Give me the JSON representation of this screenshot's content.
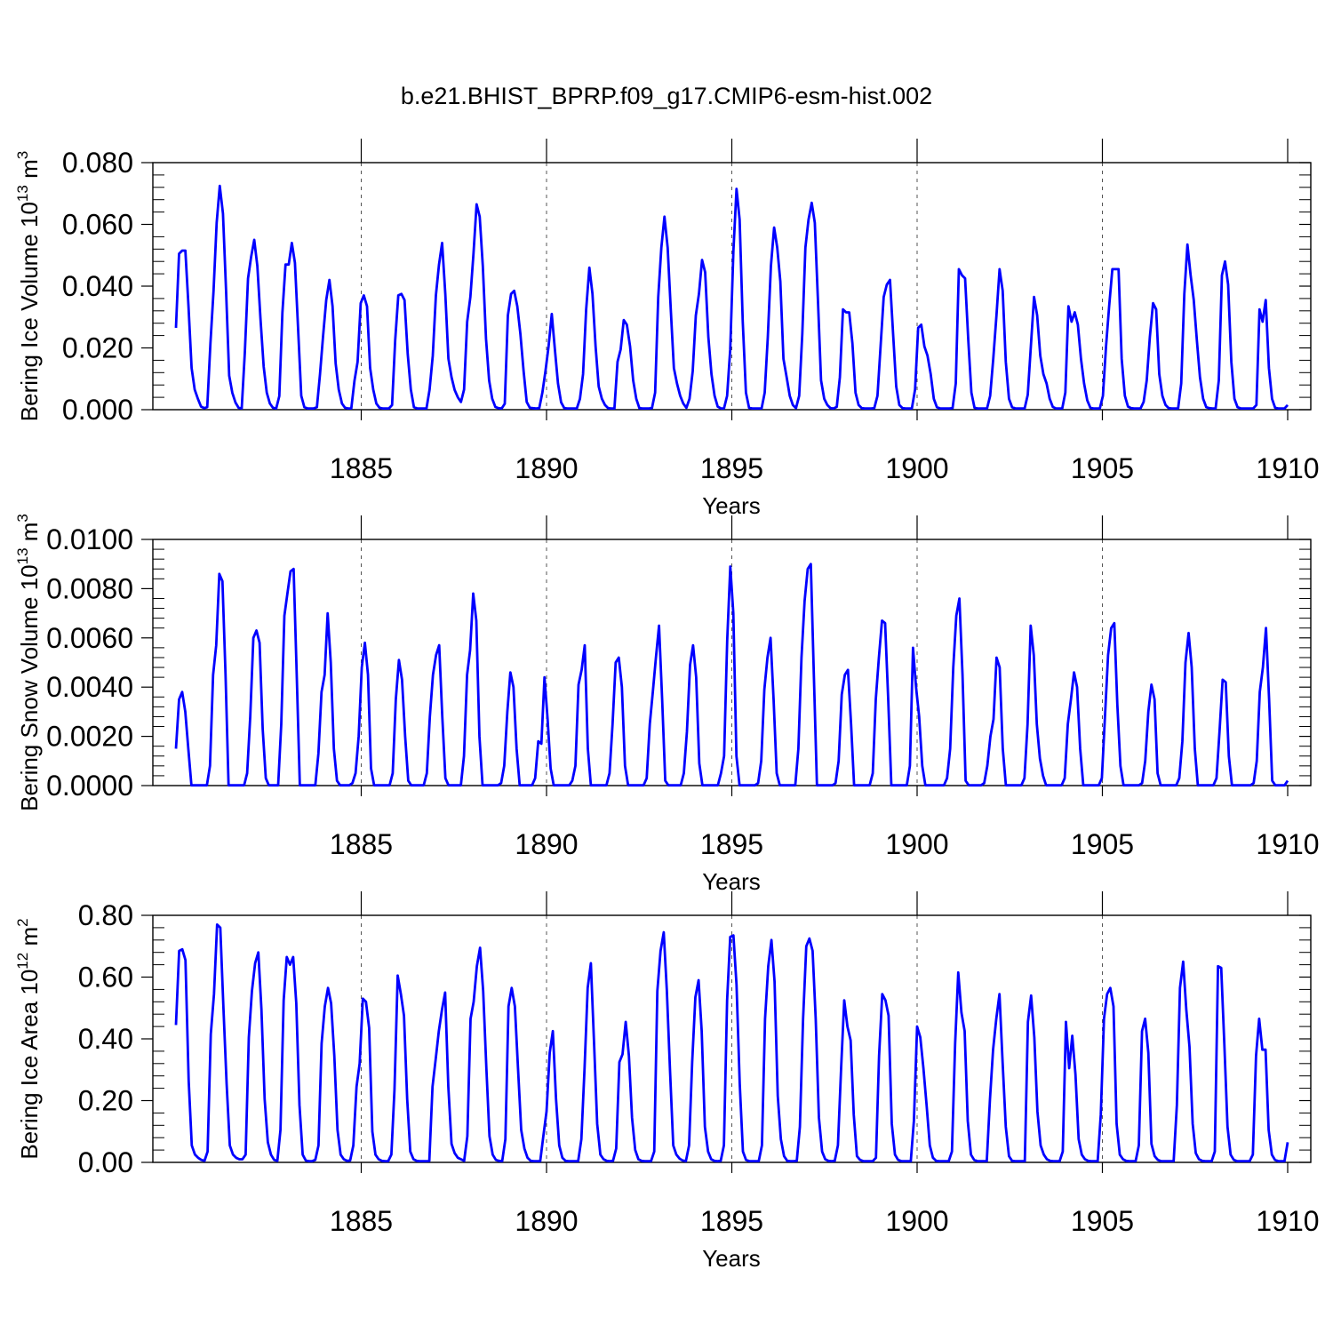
{
  "figure_title": "b.e21.BHIST_BPRP.f09_g17.CMIP6-esm-hist.002",
  "series_color": "#0000ff",
  "chart_data": [
    {
      "type": "line",
      "name": "ice-volume",
      "ylabel_prefix": "Bering Ice Volume 10",
      "ylabel_exp": "13",
      "ylabel_unit": " m",
      "ylabel_unit_exp": "3",
      "xlabel": "Years",
      "xlim": [
        1880,
        1910
      ],
      "ylim": [
        0,
        0.08
      ],
      "xticks": [
        "1885",
        "1890",
        "1895",
        "1900",
        "1905",
        "1910"
      ],
      "yticks": [
        "0.000",
        "0.020",
        "0.040",
        "0.060",
        "0.080"
      ],
      "grid_x": true,
      "peaks": [
        0.0515,
        0.0725,
        0.055,
        0.054,
        0.042,
        0.037,
        0.0375,
        0.054,
        0.0665,
        0.0385,
        0.031,
        0.046,
        0.029,
        0.0625,
        0.0485,
        0.0715,
        0.059,
        0.067,
        0.0325,
        0.042,
        0.0275,
        0.0455,
        0.0455,
        0.0365,
        0.0335,
        0.0455,
        0.0345,
        0.0535,
        0.048,
        0.0355
      ],
      "values": [
        0.0265,
        0.0505,
        0.0515,
        0.0515,
        0.0335,
        0.0135,
        0.0065,
        0.0035,
        0.001,
        0.0005,
        0.0008,
        0.0215,
        0.0385,
        0.0605,
        0.0725,
        0.0635,
        0.0385,
        0.011,
        0.0055,
        0.0023,
        0.0006,
        0.0004,
        0.0185,
        0.0425,
        0.0495,
        0.055,
        0.0465,
        0.0295,
        0.014,
        0.0055,
        0.002,
        0.0006,
        0.0004,
        0.0044,
        0.0315,
        0.047,
        0.047,
        0.054,
        0.0475,
        0.0265,
        0.0045,
        0.0008,
        0.0004,
        0.0004,
        0.0004,
        0.0008,
        0.0115,
        0.024,
        0.0355,
        0.042,
        0.0335,
        0.015,
        0.0065,
        0.002,
        0.0006,
        0.0004,
        0.0004,
        0.0094,
        0.0155,
        0.0345,
        0.037,
        0.0335,
        0.0135,
        0.0065,
        0.002,
        0.0006,
        0.0004,
        0.0004,
        0.0004,
        0.0015,
        0.0225,
        0.037,
        0.0375,
        0.0355,
        0.018,
        0.0065,
        0.0008,
        0.0004,
        0.0004,
        0.0004,
        0.0004,
        0.0065,
        0.0175,
        0.037,
        0.047,
        0.054,
        0.0375,
        0.0165,
        0.0105,
        0.0064,
        0.004,
        0.0025,
        0.0065,
        0.0285,
        0.0365,
        0.0505,
        0.0665,
        0.0625,
        0.0465,
        0.023,
        0.0095,
        0.0035,
        0.0009,
        0.0005,
        0.0004,
        0.0019,
        0.0305,
        0.0375,
        0.0385,
        0.0335,
        0.0245,
        0.0125,
        0.0025,
        0.0006,
        0.0005,
        0.0004,
        0.0005,
        0.0055,
        0.0125,
        0.0205,
        0.031,
        0.0195,
        0.0085,
        0.0024,
        0.0005,
        0.0004,
        0.0004,
        0.0004,
        0.0004,
        0.0035,
        0.0115,
        0.0325,
        0.046,
        0.0375,
        0.0205,
        0.0075,
        0.0035,
        0.0015,
        0.0005,
        0.0004,
        0.0004,
        0.0155,
        0.0195,
        0.029,
        0.0275,
        0.0205,
        0.0095,
        0.0035,
        0.0005,
        0.0004,
        0.0004,
        0.0004,
        0.0005,
        0.0055,
        0.0365,
        0.0525,
        0.0625,
        0.0525,
        0.0325,
        0.0135,
        0.0085,
        0.0045,
        0.002,
        0.0006,
        0.0035,
        0.0125,
        0.0305,
        0.0375,
        0.0485,
        0.0445,
        0.0235,
        0.0115,
        0.0045,
        0.001,
        0.0004,
        0.0004,
        0.0045,
        0.0195,
        0.0515,
        0.0715,
        0.0615,
        0.0285,
        0.0055,
        0.0006,
        0.0004,
        0.0004,
        0.0004,
        0.0004,
        0.0055,
        0.0235,
        0.0465,
        0.059,
        0.0525,
        0.0415,
        0.0165,
        0.0105,
        0.0045,
        0.0015,
        0.0005,
        0.0045,
        0.0245,
        0.0525,
        0.0615,
        0.067,
        0.0605,
        0.0355,
        0.0095,
        0.0035,
        0.0015,
        0.0005,
        0.0004,
        0.0009,
        0.0105,
        0.0325,
        0.0315,
        0.0315,
        0.0215,
        0.0055,
        0.0015,
        0.0005,
        0.0004,
        0.0004,
        0.0004,
        0.0005,
        0.0045,
        0.0205,
        0.0365,
        0.0405,
        0.042,
        0.0245,
        0.0075,
        0.0015,
        0.0005,
        0.0004,
        0.0004,
        0.0004,
        0.0065,
        0.0265,
        0.0275,
        0.0205,
        0.0175,
        0.0115,
        0.0035,
        0.0008,
        0.0004,
        0.0004,
        0.0004,
        0.0004,
        0.0005,
        0.0085,
        0.0455,
        0.0435,
        0.0425,
        0.0225,
        0.0055,
        0.0006,
        0.0004,
        0.0004,
        0.0004,
        0.0004,
        0.0045,
        0.0165,
        0.0305,
        0.0455,
        0.0385,
        0.0155,
        0.0035,
        0.0008,
        0.0004,
        0.0004,
        0.0004,
        0.0004,
        0.0048,
        0.0205,
        0.0365,
        0.0305,
        0.0175,
        0.0115,
        0.0085,
        0.0035,
        0.0009,
        0.0004,
        0.0004,
        0.0004,
        0.0055,
        0.0335,
        0.0285,
        0.0315,
        0.0275,
        0.0165,
        0.0085,
        0.003,
        0.0006,
        0.0004,
        0.0004,
        0.0004,
        0.0045,
        0.0205,
        0.0335,
        0.0455,
        0.0455,
        0.0455,
        0.0165,
        0.0045,
        0.001,
        0.0005,
        0.0004,
        0.0004,
        0.0004,
        0.0025,
        0.0095,
        0.0235,
        0.0345,
        0.0325,
        0.0115,
        0.0045,
        0.0015,
        0.0005,
        0.0004,
        0.0004,
        0.0004,
        0.0085,
        0.0375,
        0.0535,
        0.0435,
        0.0355,
        0.0225,
        0.0105,
        0.0035,
        0.0008,
        0.0005,
        0.0004,
        0.0004,
        0.0095,
        0.0435,
        0.048,
        0.0405,
        0.0155,
        0.0035,
        0.0008,
        0.0004,
        0.0004,
        0.0004,
        0.0004,
        0.0004,
        0.0015,
        0.0325,
        0.0285,
        0.0355,
        0.0135,
        0.0035,
        0.0006,
        0.0004,
        0.0004,
        0.0004,
        0.0015
      ]
    },
    {
      "type": "line",
      "name": "snow-volume",
      "ylabel_prefix": "Bering Snow Volume 10",
      "ylabel_exp": "13",
      "ylabel_unit": " m",
      "ylabel_unit_exp": "3",
      "xlabel": "Years",
      "xlim": [
        1880,
        1910
      ],
      "ylim": [
        0,
        0.01
      ],
      "xticks": [
        "1885",
        "1890",
        "1895",
        "1900",
        "1905",
        "1910"
      ],
      "yticks": [
        "0.0000",
        "0.0020",
        "0.0040",
        "0.0060",
        "0.0080",
        "0.0100"
      ],
      "grid_x": true,
      "peaks": [
        0.0038,
        0.0086,
        0.0063,
        0.0088,
        0.007,
        0.0058,
        0.0051,
        0.0057,
        0.0078,
        0.0046,
        0.0044,
        0.0057,
        0.0052,
        0.0065,
        0.0057,
        0.0089,
        0.006,
        0.009,
        0.0047,
        0.0067,
        0.0056,
        0.0076,
        0.0052,
        0.0065,
        0.0046,
        0.0066,
        0.0041,
        0.0062,
        0.0043,
        0.0064
      ],
      "values": [
        0.0015,
        0.0035,
        0.0038,
        0.003,
        0.0015,
        1e-05,
        1e-05,
        1e-05,
        1e-05,
        1e-05,
        1e-05,
        0.0008,
        0.0045,
        0.0057,
        0.0086,
        0.0083,
        0.0045,
        1e-05,
        1e-05,
        1e-05,
        1e-05,
        1e-05,
        1e-05,
        0.0005,
        0.0028,
        0.006,
        0.0063,
        0.0058,
        0.0023,
        0.0003,
        1e-05,
        1e-05,
        1e-05,
        1e-05,
        0.0025,
        0.0069,
        0.0078,
        0.0087,
        0.0088,
        0.0045,
        1e-05,
        1e-05,
        1e-05,
        1e-05,
        1e-05,
        1e-05,
        0.0013,
        0.0038,
        0.0045,
        0.007,
        0.005,
        0.0015,
        0.0002,
        1e-05,
        1e-05,
        1e-05,
        1e-05,
        0.0001,
        0.0005,
        0.002,
        0.0048,
        0.0058,
        0.0045,
        0.0007,
        1e-05,
        1e-05,
        1e-05,
        1e-05,
        1e-05,
        1e-05,
        0.0005,
        0.0035,
        0.0051,
        0.0043,
        0.002,
        0.0002,
        1e-05,
        1e-05,
        1e-05,
        1e-05,
        1e-05,
        0.0005,
        0.0028,
        0.0045,
        0.0053,
        0.0057,
        0.0028,
        0.0003,
        1e-05,
        1e-05,
        1e-05,
        1e-05,
        1e-05,
        0.0012,
        0.0045,
        0.0055,
        0.0078,
        0.0067,
        0.002,
        1e-05,
        1e-05,
        1e-05,
        1e-05,
        1e-05,
        1e-05,
        0.0001,
        0.0008,
        0.003,
        0.0046,
        0.004,
        0.0015,
        1e-05,
        1e-05,
        1e-05,
        1e-05,
        1e-05,
        0.0003,
        0.0018,
        0.0017,
        0.0044,
        0.0027,
        0.0007,
        1e-05,
        1e-05,
        1e-05,
        1e-05,
        1e-05,
        1e-05,
        0.0002,
        0.0008,
        0.0041,
        0.0047,
        0.0057,
        0.0015,
        1e-05,
        1e-05,
        1e-05,
        1e-05,
        1e-05,
        1e-05,
        0.0005,
        0.0025,
        0.005,
        0.0052,
        0.004,
        0.0008,
        1e-05,
        1e-05,
        1e-05,
        1e-05,
        1e-05,
        1e-05,
        0.0003,
        0.0025,
        0.0038,
        0.0052,
        0.0065,
        0.0035,
        0.0002,
        1e-05,
        1e-05,
        1e-05,
        1e-05,
        1e-05,
        0.0005,
        0.0022,
        0.0049,
        0.0057,
        0.0044,
        0.0009,
        1e-05,
        1e-05,
        1e-05,
        1e-05,
        1e-05,
        1e-05,
        0.0005,
        0.0012,
        0.0059,
        0.0089,
        0.007,
        0.0012,
        1e-05,
        1e-05,
        1e-05,
        1e-05,
        1e-05,
        1e-05,
        0.0001,
        0.001,
        0.0039,
        0.0052,
        0.006,
        0.0035,
        0.0005,
        1e-05,
        1e-05,
        1e-05,
        1e-05,
        1e-05,
        1e-05,
        0.0015,
        0.0052,
        0.0075,
        0.0088,
        0.009,
        0.0045,
        1e-05,
        1e-05,
        1e-05,
        1e-05,
        1e-05,
        1e-05,
        0.0001,
        0.001,
        0.0037,
        0.0045,
        0.0047,
        0.0025,
        1e-05,
        1e-05,
        1e-05,
        1e-05,
        1e-05,
        1e-05,
        0.0005,
        0.0035,
        0.0052,
        0.0067,
        0.0066,
        0.0035,
        1e-05,
        1e-05,
        1e-05,
        1e-05,
        1e-05,
        1e-05,
        0.0008,
        0.0056,
        0.004,
        0.0028,
        0.0008,
        1e-05,
        1e-05,
        1e-05,
        1e-05,
        1e-05,
        1e-05,
        1e-05,
        0.0003,
        0.0015,
        0.0048,
        0.0069,
        0.0076,
        0.0045,
        0.0002,
        1e-05,
        1e-05,
        1e-05,
        1e-05,
        1e-05,
        0.0001,
        0.0008,
        0.002,
        0.0027,
        0.0052,
        0.0048,
        0.0015,
        1e-05,
        1e-05,
        1e-05,
        1e-05,
        1e-05,
        1e-05,
        0.0003,
        0.0025,
        0.0065,
        0.0053,
        0.0025,
        0.0011,
        0.0004,
        1e-05,
        1e-05,
        1e-05,
        1e-05,
        1e-05,
        1e-05,
        0.0003,
        0.0025,
        0.0035,
        0.0046,
        0.004,
        0.0015,
        1e-05,
        1e-05,
        1e-05,
        1e-05,
        1e-05,
        1e-05,
        0.0003,
        0.0028,
        0.0053,
        0.0064,
        0.0066,
        0.0033,
        0.0008,
        1e-05,
        1e-05,
        1e-05,
        1e-05,
        1e-05,
        1e-05,
        0.0001,
        0.001,
        0.003,
        0.0041,
        0.0035,
        0.0005,
        1e-05,
        1e-05,
        1e-05,
        1e-05,
        1e-05,
        1e-05,
        0.0003,
        0.0018,
        0.005,
        0.0062,
        0.0048,
        0.0015,
        1e-05,
        1e-05,
        1e-05,
        1e-05,
        1e-05,
        1e-05,
        0.0003,
        0.0022,
        0.0043,
        0.0042,
        0.0012,
        1e-05,
        1e-05,
        1e-05,
        1e-05,
        1e-05,
        1e-05,
        1e-05,
        0.0001,
        0.001,
        0.0038,
        0.0048,
        0.0064,
        0.0035,
        0.0002,
        1e-05,
        1e-05,
        1e-05,
        1e-05,
        0.0002
      ]
    },
    {
      "type": "line",
      "name": "ice-area",
      "ylabel_prefix": "Bering Ice Area 10",
      "ylabel_exp": "12",
      "ylabel_unit": " m",
      "ylabel_unit_exp": "2",
      "xlabel": "Years",
      "xlim": [
        1880,
        1910
      ],
      "ylim": [
        0,
        0.8
      ],
      "xticks": [
        "1885",
        "1890",
        "1895",
        "1900",
        "1905",
        "1910"
      ],
      "yticks": [
        "0.00",
        "0.20",
        "0.40",
        "0.60",
        "0.80"
      ],
      "grid_x": true,
      "peaks": [
        0.69,
        0.77,
        0.68,
        0.665,
        0.565,
        0.53,
        0.605,
        0.55,
        0.695,
        0.565,
        0.425,
        0.645,
        0.455,
        0.745,
        0.59,
        0.735,
        0.72,
        0.725,
        0.525,
        0.545,
        0.44,
        0.615,
        0.545,
        0.54,
        0.46,
        0.565,
        0.465,
        0.65,
        0.635,
        0.465
      ],
      "values": [
        0.445,
        0.685,
        0.69,
        0.655,
        0.265,
        0.055,
        0.025,
        0.015,
        0.008,
        0.005,
        0.035,
        0.415,
        0.545,
        0.77,
        0.76,
        0.495,
        0.255,
        0.055,
        0.025,
        0.015,
        0.01,
        0.01,
        0.025,
        0.405,
        0.555,
        0.645,
        0.68,
        0.495,
        0.205,
        0.065,
        0.025,
        0.008,
        0.005,
        0.105,
        0.525,
        0.665,
        0.64,
        0.665,
        0.515,
        0.185,
        0.025,
        0.006,
        0.004,
        0.004,
        0.008,
        0.055,
        0.385,
        0.505,
        0.565,
        0.515,
        0.345,
        0.105,
        0.025,
        0.01,
        0.005,
        0.006,
        0.055,
        0.245,
        0.32,
        0.53,
        0.52,
        0.435,
        0.1,
        0.025,
        0.01,
        0.005,
        0.004,
        0.004,
        0.025,
        0.235,
        0.605,
        0.545,
        0.475,
        0.205,
        0.035,
        0.01,
        0.005,
        0.004,
        0.004,
        0.004,
        0.005,
        0.245,
        0.335,
        0.425,
        0.495,
        0.55,
        0.245,
        0.06,
        0.03,
        0.015,
        0.01,
        0.005,
        0.085,
        0.465,
        0.52,
        0.635,
        0.695,
        0.555,
        0.305,
        0.085,
        0.025,
        0.008,
        0.005,
        0.004,
        0.075,
        0.505,
        0.565,
        0.505,
        0.305,
        0.105,
        0.045,
        0.015,
        0.005,
        0.004,
        0.004,
        0.004,
        0.085,
        0.165,
        0.355,
        0.425,
        0.205,
        0.055,
        0.015,
        0.005,
        0.004,
        0.004,
        0.004,
        0.004,
        0.075,
        0.305,
        0.565,
        0.645,
        0.385,
        0.125,
        0.025,
        0.01,
        0.005,
        0.004,
        0.005,
        0.045,
        0.325,
        0.35,
        0.455,
        0.345,
        0.145,
        0.04,
        0.01,
        0.005,
        0.004,
        0.004,
        0.004,
        0.035,
        0.555,
        0.685,
        0.745,
        0.555,
        0.295,
        0.055,
        0.025,
        0.012,
        0.006,
        0.004,
        0.055,
        0.325,
        0.535,
        0.59,
        0.425,
        0.115,
        0.035,
        0.01,
        0.005,
        0.004,
        0.005,
        0.055,
        0.525,
        0.73,
        0.735,
        0.575,
        0.255,
        0.035,
        0.008,
        0.004,
        0.004,
        0.004,
        0.004,
        0.055,
        0.465,
        0.635,
        0.72,
        0.585,
        0.215,
        0.075,
        0.02,
        0.005,
        0.004,
        0.004,
        0.005,
        0.115,
        0.465,
        0.7,
        0.725,
        0.685,
        0.465,
        0.145,
        0.035,
        0.01,
        0.005,
        0.004,
        0.005,
        0.055,
        0.305,
        0.525,
        0.44,
        0.395,
        0.155,
        0.02,
        0.008,
        0.004,
        0.004,
        0.004,
        0.004,
        0.015,
        0.345,
        0.545,
        0.525,
        0.475,
        0.125,
        0.025,
        0.008,
        0.004,
        0.004,
        0.004,
        0.004,
        0.135,
        0.44,
        0.405,
        0.305,
        0.185,
        0.055,
        0.015,
        0.005,
        0.004,
        0.004,
        0.004,
        0.004,
        0.035,
        0.385,
        0.615,
        0.485,
        0.425,
        0.135,
        0.025,
        0.008,
        0.004,
        0.004,
        0.004,
        0.004,
        0.205,
        0.365,
        0.465,
        0.545,
        0.325,
        0.115,
        0.02,
        0.005,
        0.004,
        0.004,
        0.004,
        0.004,
        0.455,
        0.54,
        0.405,
        0.165,
        0.055,
        0.025,
        0.01,
        0.005,
        0.004,
        0.004,
        0.004,
        0.035,
        0.455,
        0.305,
        0.41,
        0.285,
        0.075,
        0.025,
        0.01,
        0.005,
        0.004,
        0.004,
        0.004,
        0.155,
        0.465,
        0.545,
        0.565,
        0.505,
        0.125,
        0.025,
        0.01,
        0.005,
        0.004,
        0.004,
        0.004,
        0.055,
        0.425,
        0.465,
        0.355,
        0.06,
        0.02,
        0.008,
        0.004,
        0.004,
        0.004,
        0.004,
        0.004,
        0.185,
        0.565,
        0.65,
        0.495,
        0.375,
        0.125,
        0.03,
        0.01,
        0.005,
        0.004,
        0.004,
        0.004,
        0.035,
        0.635,
        0.63,
        0.385,
        0.115,
        0.025,
        0.008,
        0.004,
        0.004,
        0.004,
        0.004,
        0.004,
        0.025,
        0.345,
        0.465,
        0.365,
        0.365,
        0.105,
        0.025,
        0.008,
        0.004,
        0.004,
        0.004,
        0.065
      ]
    }
  ]
}
